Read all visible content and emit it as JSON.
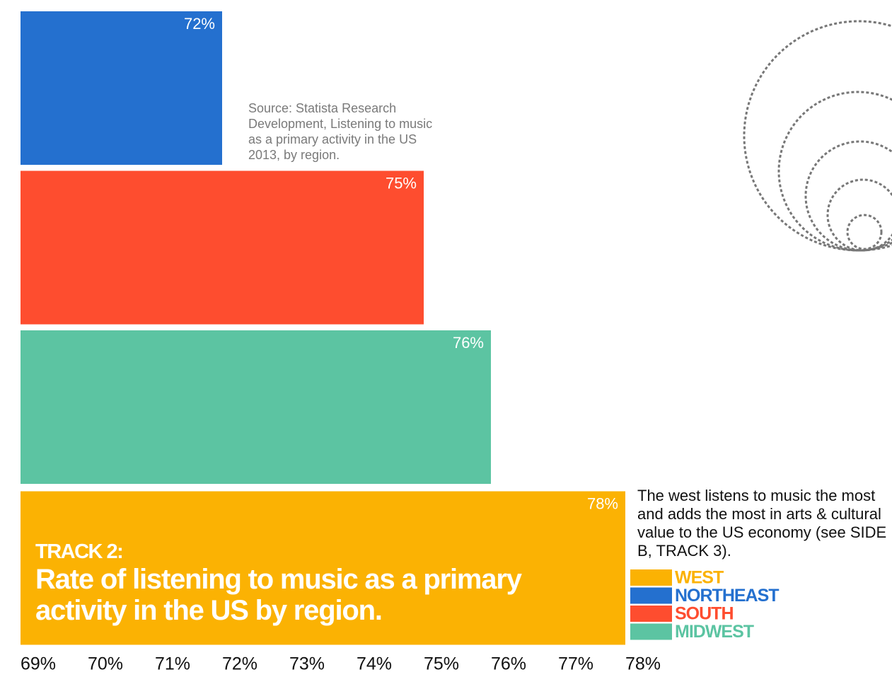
{
  "chart_data": {
    "type": "bar",
    "orientation": "horizontal",
    "title_kicker": "TRACK 2:",
    "title": "Rate of listening to music as a primary activity in the US by region.",
    "source": "Source: Statista Research Development, Listening to music as a primary activity in the US 2013, by region.",
    "annotation": "The west listens to music the most and adds the most in arts & cultural value to the US economy (see SIDE B, TRACK 3).",
    "categories": [
      "WEST",
      "NORTHEAST",
      "SOUTH",
      "MIDWEST"
    ],
    "values": [
      78,
      72,
      75,
      76
    ],
    "value_labels": [
      "78%",
      "72%",
      "75%",
      "76%"
    ],
    "colors": [
      "#fbb203",
      "#2470cf",
      "#fe4d2f",
      "#5cc4a2"
    ],
    "xlim": [
      69,
      78
    ],
    "xticks": [
      {
        "value": 69,
        "label": "69%"
      },
      {
        "value": 70,
        "label": "70%"
      },
      {
        "value": 71,
        "label": "71%"
      },
      {
        "value": 72,
        "label": "72%"
      },
      {
        "value": 73,
        "label": "73%"
      },
      {
        "value": 74,
        "label": "74%"
      },
      {
        "value": 75,
        "label": "75%"
      },
      {
        "value": 76,
        "label": "76%"
      },
      {
        "value": 77,
        "label": "77%"
      },
      {
        "value": 78,
        "label": "78%"
      }
    ],
    "legend": true
  }
}
